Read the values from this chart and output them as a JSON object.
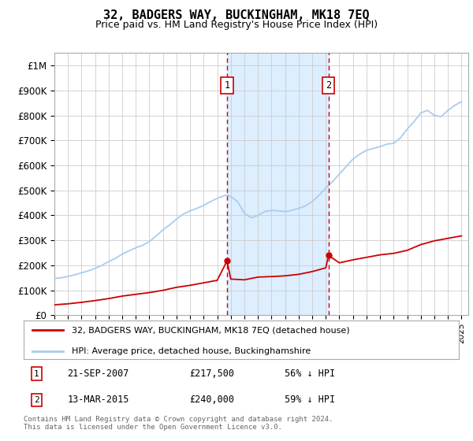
{
  "title": "32, BADGERS WAY, BUCKINGHAM, MK18 7EQ",
  "subtitle": "Price paid vs. HM Land Registry's House Price Index (HPI)",
  "title_fontsize": 11,
  "subtitle_fontsize": 9,
  "background_color": "#ffffff",
  "grid_color": "#cccccc",
  "legend_label_red": "32, BADGERS WAY, BUCKINGHAM, MK18 7EQ (detached house)",
  "legend_label_blue": "HPI: Average price, detached house, Buckinghamshire",
  "footnote": "Contains HM Land Registry data © Crown copyright and database right 2024.\nThis data is licensed under the Open Government Licence v3.0.",
  "sale1_date": "21-SEP-2007",
  "sale1_price": 217500,
  "sale1_x": 2007.72,
  "sale2_date": "13-MAR-2015",
  "sale2_price": 240000,
  "sale2_x": 2015.2,
  "xlim": [
    1995,
    2025.5
  ],
  "ylim": [
    0,
    1050000
  ],
  "hpi_color": "#aaccee",
  "price_color": "#cc0000",
  "shade_color": "#ddeeff",
  "hpi_x": [
    1995.0,
    1995.5,
    1996.0,
    1996.5,
    1997.0,
    1997.5,
    1998.0,
    1998.5,
    1999.0,
    1999.5,
    2000.0,
    2000.5,
    2001.0,
    2001.5,
    2002.0,
    2002.5,
    2003.0,
    2003.5,
    2004.0,
    2004.5,
    2005.0,
    2005.5,
    2006.0,
    2006.5,
    2007.0,
    2007.5,
    2007.72,
    2008.0,
    2008.5,
    2009.0,
    2009.5,
    2010.0,
    2010.5,
    2011.0,
    2011.5,
    2012.0,
    2012.5,
    2013.0,
    2013.5,
    2014.0,
    2014.5,
    2015.0,
    2015.2,
    2015.5,
    2016.0,
    2016.5,
    2017.0,
    2017.5,
    2018.0,
    2018.5,
    2019.0,
    2019.5,
    2020.0,
    2020.5,
    2021.0,
    2021.5,
    2022.0,
    2022.5,
    2023.0,
    2023.5,
    2024.0,
    2024.5,
    2025.0
  ],
  "hpi_y": [
    148000,
    150000,
    156000,
    162000,
    170000,
    178000,
    188000,
    200000,
    215000,
    228000,
    245000,
    258000,
    270000,
    280000,
    295000,
    318000,
    342000,
    362000,
    385000,
    405000,
    418000,
    428000,
    440000,
    455000,
    468000,
    478000,
    482000,
    475000,
    455000,
    408000,
    390000,
    400000,
    415000,
    420000,
    418000,
    415000,
    420000,
    428000,
    438000,
    455000,
    480000,
    510000,
    520000,
    535000,
    565000,
    595000,
    625000,
    645000,
    660000,
    668000,
    675000,
    685000,
    688000,
    710000,
    745000,
    775000,
    810000,
    820000,
    800000,
    795000,
    820000,
    840000,
    855000
  ],
  "price_x": [
    1995.0,
    1996.0,
    1997.0,
    1998.0,
    1999.0,
    2000.0,
    2001.0,
    2002.0,
    2003.0,
    2004.0,
    2005.0,
    2006.0,
    2007.0,
    2007.72,
    2008.0,
    2009.0,
    2010.0,
    2011.0,
    2012.0,
    2013.0,
    2014.0,
    2015.0,
    2015.2,
    2016.0,
    2017.0,
    2018.0,
    2019.0,
    2020.0,
    2021.0,
    2022.0,
    2023.0,
    2024.0,
    2025.0
  ],
  "price_y": [
    42000,
    46000,
    52000,
    59000,
    67000,
    77000,
    84000,
    91000,
    100000,
    112000,
    120000,
    130000,
    140000,
    217500,
    145000,
    142000,
    153000,
    155000,
    158000,
    164000,
    175000,
    190000,
    240000,
    210000,
    222000,
    232000,
    242000,
    248000,
    260000,
    283000,
    298000,
    308000,
    318000
  ],
  "yticks": [
    0,
    100000,
    200000,
    300000,
    400000,
    500000,
    600000,
    700000,
    800000,
    900000,
    1000000
  ],
  "ylabels": [
    "£0",
    "£100K",
    "£200K",
    "£300K",
    "£400K",
    "£500K",
    "£600K",
    "£700K",
    "£800K",
    "£900K",
    "£1M"
  ]
}
